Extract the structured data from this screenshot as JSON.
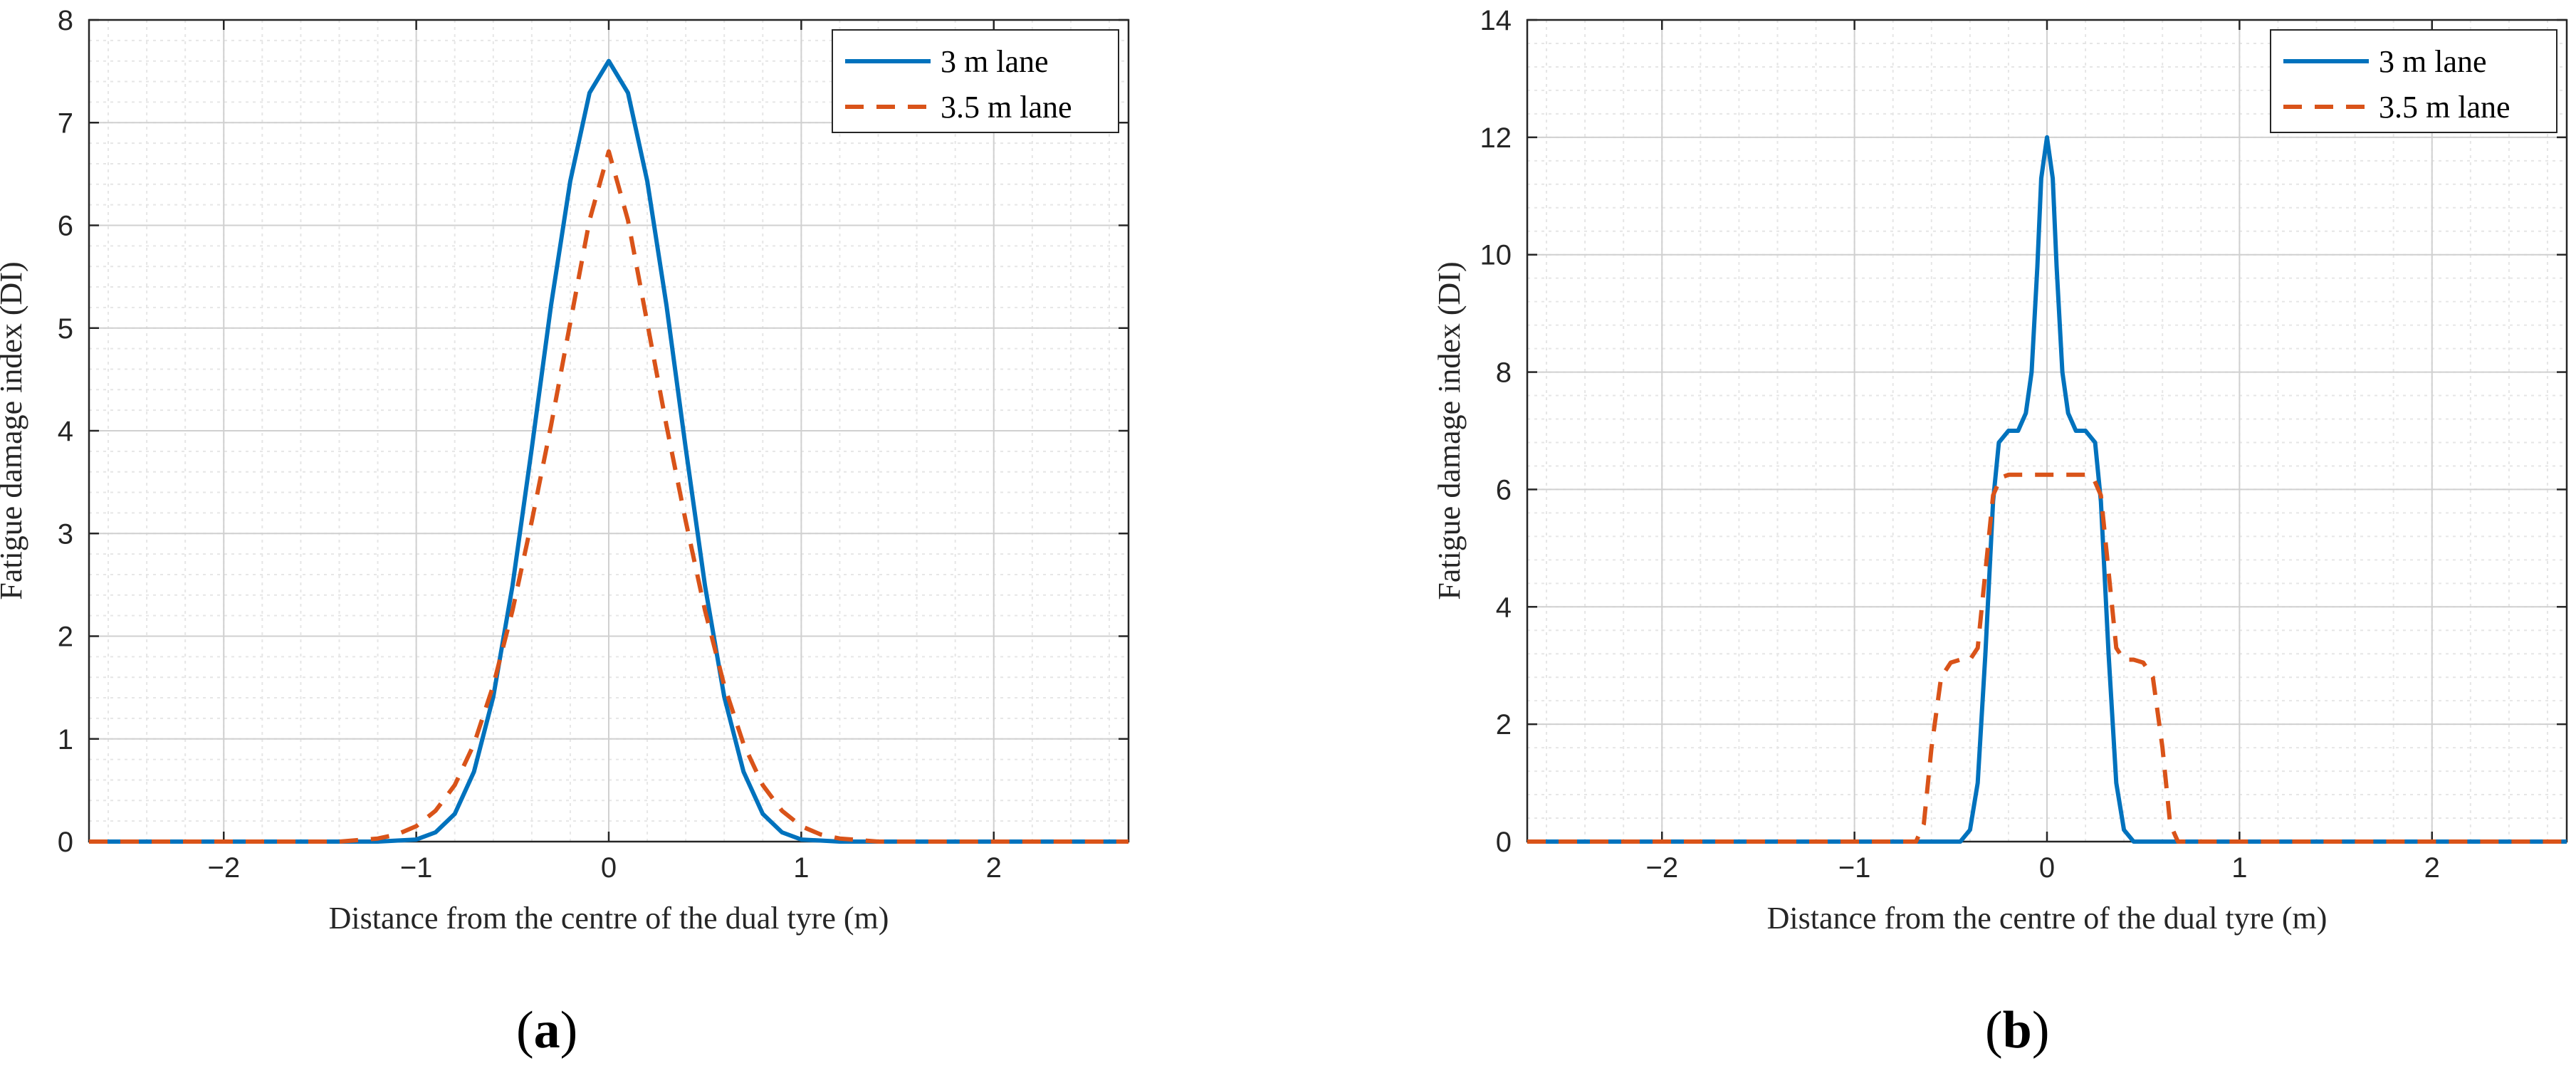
{
  "chart_data": [
    {
      "type": "line",
      "panel_label": {
        "open": "(",
        "letter": "a",
        "close": ")"
      },
      "xlabel": "Distance from the centre of the dual tyre (m)",
      "ylabel": "Fatigue damage index (DI)",
      "xlim": [
        -2.7,
        2.7
      ],
      "ylim": [
        0,
        8
      ],
      "xticks": [
        -2,
        -1,
        0,
        1,
        2
      ],
      "xtick_labels": [
        "−2",
        "−1",
        "0",
        "1",
        "2"
      ],
      "yticks": [
        0,
        1,
        2,
        3,
        4,
        5,
        6,
        7,
        8
      ],
      "ytick_labels": [
        "0",
        "1",
        "2",
        "3",
        "4",
        "5",
        "6",
        "7",
        "8"
      ],
      "grid": true,
      "minor_grid": true,
      "legend_position": "top-right",
      "series": [
        {
          "name": "3 m lane",
          "style": "solid",
          "color": "#0072BD",
          "x": [
            -2.7,
            -1.2,
            -1.0,
            -0.9,
            -0.8,
            -0.7,
            -0.6,
            -0.5,
            -0.4,
            -0.3,
            -0.2,
            -0.1,
            0,
            0.1,
            0.2,
            0.3,
            0.4,
            0.5,
            0.6,
            0.7,
            0.8,
            0.9,
            1.0,
            1.2,
            2.7
          ],
          "y": [
            0,
            0,
            0.02,
            0.09,
            0.27,
            0.68,
            1.41,
            2.49,
            3.83,
            5.22,
            6.43,
            7.29,
            7.6,
            7.29,
            6.43,
            5.22,
            3.83,
            2.49,
            1.41,
            0.68,
            0.27,
            0.09,
            0.02,
            0,
            0
          ]
        },
        {
          "name": "3.5 m lane",
          "style": "dashed",
          "color": "#D95319",
          "x": [
            -2.7,
            -1.4,
            -1.2,
            -1.1,
            -1.0,
            -0.9,
            -0.8,
            -0.7,
            -0.6,
            -0.5,
            -0.4,
            -0.3,
            -0.2,
            -0.1,
            0,
            0.1,
            0.2,
            0.3,
            0.4,
            0.5,
            0.6,
            0.7,
            0.8,
            0.9,
            1.0,
            1.1,
            1.2,
            1.4,
            2.7
          ],
          "y": [
            0,
            0,
            0.03,
            0.07,
            0.15,
            0.3,
            0.55,
            0.95,
            1.52,
            2.25,
            3.12,
            4.05,
            5.05,
            6.05,
            6.72,
            6.05,
            5.05,
            4.05,
            3.12,
            2.25,
            1.52,
            0.95,
            0.55,
            0.3,
            0.15,
            0.07,
            0.03,
            0,
            0
          ]
        }
      ]
    },
    {
      "type": "line",
      "panel_label": {
        "open": "(",
        "letter": "b",
        "close": ")"
      },
      "xlabel": "Distance from the centre of the dual tyre (m)",
      "ylabel": "Fatigue damage index (DI)",
      "xlim": [
        -2.7,
        2.7
      ],
      "ylim": [
        0,
        14
      ],
      "xticks": [
        -2,
        -1,
        0,
        1,
        2
      ],
      "xtick_labels": [
        "−2",
        "−1",
        "0",
        "1",
        "2"
      ],
      "yticks": [
        0,
        2,
        4,
        6,
        8,
        10,
        12,
        14
      ],
      "ytick_labels": [
        "0",
        "2",
        "4",
        "6",
        "8",
        "10",
        "12",
        "14"
      ],
      "grid": true,
      "minor_grid": true,
      "legend_position": "top-right",
      "series": [
        {
          "name": "3 m lane",
          "style": "solid",
          "color": "#0072BD",
          "x": [
            -2.7,
            -0.45,
            -0.4,
            -0.36,
            -0.32,
            -0.28,
            -0.25,
            -0.2,
            -0.15,
            -0.11,
            -0.08,
            -0.05,
            -0.03,
            0,
            0.03,
            0.05,
            0.08,
            0.11,
            0.15,
            0.2,
            0.25,
            0.28,
            0.32,
            0.36,
            0.4,
            0.45,
            2.7
          ],
          "y": [
            0,
            0,
            0.2,
            1.0,
            3.2,
            5.8,
            6.8,
            7.0,
            7.0,
            7.3,
            8.0,
            9.8,
            11.3,
            12.0,
            11.3,
            9.8,
            8.0,
            7.3,
            7.0,
            7.0,
            6.8,
            5.8,
            3.2,
            1.0,
            0.2,
            0,
            0
          ]
        },
        {
          "name": "3.5 m lane",
          "style": "dashed",
          "color": "#D95319",
          "x": [
            -2.7,
            -0.68,
            -0.64,
            -0.6,
            -0.55,
            -0.5,
            -0.45,
            -0.4,
            -0.36,
            -0.32,
            -0.28,
            -0.24,
            -0.2,
            -0.1,
            0,
            0.1,
            0.2,
            0.24,
            0.28,
            0.32,
            0.36,
            0.4,
            0.45,
            0.5,
            0.55,
            0.6,
            0.64,
            0.68,
            2.7
          ],
          "y": [
            0,
            0,
            0.3,
            1.6,
            2.8,
            3.05,
            3.1,
            3.1,
            3.3,
            4.6,
            5.9,
            6.2,
            6.25,
            6.25,
            6.25,
            6.25,
            6.25,
            6.2,
            5.9,
            4.6,
            3.3,
            3.1,
            3.1,
            3.05,
            2.8,
            1.6,
            0.3,
            0,
            0
          ]
        }
      ]
    }
  ]
}
